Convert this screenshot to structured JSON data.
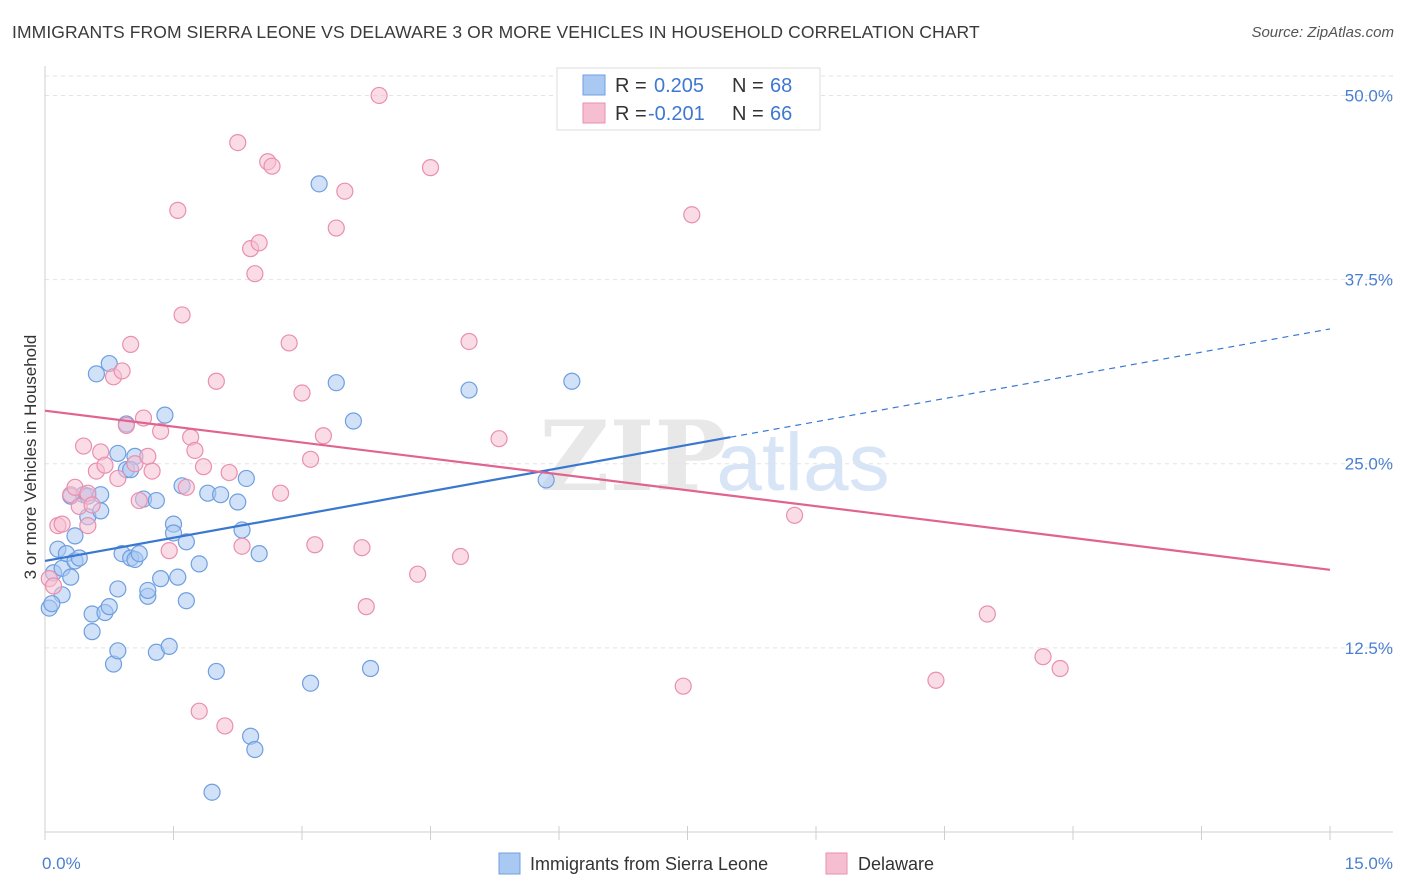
{
  "title": "IMMIGRANTS FROM SIERRA LEONE VS DELAWARE 3 OR MORE VEHICLES IN HOUSEHOLD CORRELATION CHART",
  "source": "Source: ZipAtlas.com",
  "watermark": {
    "zip": "ZIP",
    "atlas": "atlas"
  },
  "colors": {
    "blue_fill": "#a9c8f2",
    "blue_stroke": "#6f9fe0",
    "blue_line": "#3a78d0",
    "pink_fill": "#f6bfd1",
    "pink_stroke": "#ea8fae",
    "pink_line": "#e0648f",
    "tick_text": "#4a7fd0",
    "grid": "#e3e3e3"
  },
  "legend": {
    "rows": [
      {
        "r_label": "R =",
        "r_value": "0.205",
        "n_label": "N =",
        "n_value": "68"
      },
      {
        "r_label": "R =",
        "r_value": "-0.201",
        "n_label": "N =",
        "n_value": "66"
      }
    ]
  },
  "chart_data": {
    "type": "scatter",
    "xlabel": "",
    "ylabel": "3 or more Vehicles in Household",
    "xlim": [
      0,
      15
    ],
    "ylim": [
      0,
      52
    ],
    "x_tick_labels": [
      {
        "value": 0,
        "label": "0.0%"
      },
      {
        "value": 15,
        "label": "15.0%"
      }
    ],
    "y_tick_labels": [
      {
        "value": 12.5,
        "label": "12.5%"
      },
      {
        "value": 25,
        "label": "25.0%"
      },
      {
        "value": 37.5,
        "label": "37.5%"
      },
      {
        "value": 50,
        "label": "50.0%"
      }
    ],
    "grid": "horizontal dashed",
    "legend_position": "top-center",
    "series": [
      {
        "name": "Immigrants from Sierra Leone",
        "color": "blue",
        "trend": {
          "x_solid_end": 8.0,
          "x_dash_end": 15.0,
          "y_at_0": 18.4,
          "slope": 1.05
        },
        "points": [
          [
            0.05,
            15.2
          ],
          [
            0.1,
            17.6
          ],
          [
            0.15,
            19.2
          ],
          [
            0.2,
            16.1
          ],
          [
            0.2,
            17.9
          ],
          [
            0.25,
            18.9
          ],
          [
            0.3,
            22.8
          ],
          [
            0.35,
            18.4
          ],
          [
            0.35,
            20.1
          ],
          [
            0.4,
            18.6
          ],
          [
            0.45,
            22.9
          ],
          [
            0.5,
            21.4
          ],
          [
            0.55,
            13.6
          ],
          [
            0.55,
            14.8
          ],
          [
            0.6,
            31.1
          ],
          [
            0.65,
            21.8
          ],
          [
            0.7,
            14.9
          ],
          [
            0.75,
            31.8
          ],
          [
            0.75,
            15.3
          ],
          [
            0.8,
            11.4
          ],
          [
            0.85,
            25.7
          ],
          [
            0.85,
            12.3
          ],
          [
            0.9,
            18.9
          ],
          [
            0.95,
            27.7
          ],
          [
            0.95,
            24.6
          ],
          [
            1.0,
            18.6
          ],
          [
            1.05,
            18.5
          ],
          [
            1.05,
            25.5
          ],
          [
            1.1,
            18.9
          ],
          [
            1.15,
            22.6
          ],
          [
            1.2,
            16.0
          ],
          [
            1.2,
            16.4
          ],
          [
            1.3,
            12.2
          ],
          [
            1.35,
            17.2
          ],
          [
            1.4,
            28.3
          ],
          [
            1.45,
            12.6
          ],
          [
            1.5,
            20.9
          ],
          [
            1.5,
            20.3
          ],
          [
            1.55,
            17.3
          ],
          [
            1.6,
            23.5
          ],
          [
            1.65,
            15.7
          ],
          [
            1.65,
            19.7
          ],
          [
            1.8,
            18.2
          ],
          [
            1.9,
            23.0
          ],
          [
            1.95,
            2.7
          ],
          [
            2.0,
            10.9
          ],
          [
            2.05,
            22.9
          ],
          [
            2.25,
            22.4
          ],
          [
            2.3,
            20.5
          ],
          [
            2.35,
            24.0
          ],
          [
            2.4,
            6.5
          ],
          [
            2.45,
            5.6
          ],
          [
            2.5,
            18.9
          ],
          [
            3.1,
            10.1
          ],
          [
            3.2,
            44.0
          ],
          [
            3.4,
            30.5
          ],
          [
            3.6,
            27.9
          ],
          [
            3.8,
            11.1
          ],
          [
            4.95,
            30.0
          ],
          [
            5.85,
            23.9
          ],
          [
            6.15,
            30.6
          ],
          [
            0.08,
            15.5
          ],
          [
            0.5,
            22.8
          ],
          [
            0.85,
            16.5
          ],
          [
            1.0,
            24.6
          ],
          [
            1.3,
            22.5
          ],
          [
            0.3,
            17.3
          ],
          [
            0.65,
            22.9
          ]
        ]
      },
      {
        "name": "Delaware",
        "color": "pink",
        "trend": {
          "x_start": 0,
          "x_end": 15.0,
          "y_at_0": 28.6,
          "slope": -0.72
        },
        "points": [
          [
            0.05,
            17.2
          ],
          [
            0.1,
            16.7
          ],
          [
            0.15,
            20.8
          ],
          [
            0.2,
            20.9
          ],
          [
            0.3,
            22.9
          ],
          [
            0.35,
            23.4
          ],
          [
            0.4,
            22.1
          ],
          [
            0.45,
            26.2
          ],
          [
            0.5,
            23.0
          ],
          [
            0.55,
            22.2
          ],
          [
            0.6,
            24.5
          ],
          [
            0.65,
            25.8
          ],
          [
            0.7,
            24.9
          ],
          [
            0.8,
            30.9
          ],
          [
            0.85,
            24.0
          ],
          [
            0.9,
            31.3
          ],
          [
            0.95,
            27.6
          ],
          [
            1.0,
            33.1
          ],
          [
            1.05,
            25.0
          ],
          [
            1.1,
            22.5
          ],
          [
            1.15,
            28.1
          ],
          [
            1.2,
            25.5
          ],
          [
            1.25,
            24.5
          ],
          [
            1.35,
            27.2
          ],
          [
            1.45,
            19.1
          ],
          [
            1.55,
            42.2
          ],
          [
            1.6,
            35.1
          ],
          [
            1.65,
            23.4
          ],
          [
            1.7,
            26.8
          ],
          [
            1.75,
            25.9
          ],
          [
            1.8,
            8.2
          ],
          [
            1.85,
            24.8
          ],
          [
            2.0,
            30.6
          ],
          [
            2.1,
            7.2
          ],
          [
            2.15,
            24.4
          ],
          [
            2.25,
            46.8
          ],
          [
            2.3,
            19.4
          ],
          [
            2.4,
            39.6
          ],
          [
            2.45,
            37.9
          ],
          [
            2.5,
            40.0
          ],
          [
            2.6,
            45.5
          ],
          [
            2.65,
            45.2
          ],
          [
            2.75,
            23.0
          ],
          [
            2.85,
            33.2
          ],
          [
            3.0,
            29.8
          ],
          [
            3.1,
            25.3
          ],
          [
            3.15,
            19.5
          ],
          [
            3.25,
            26.9
          ],
          [
            3.4,
            41.0
          ],
          [
            3.5,
            43.5
          ],
          [
            3.7,
            19.3
          ],
          [
            3.75,
            15.3
          ],
          [
            3.9,
            50.0
          ],
          [
            4.35,
            17.5
          ],
          [
            4.5,
            45.1
          ],
          [
            4.85,
            18.7
          ],
          [
            4.95,
            33.3
          ],
          [
            5.3,
            26.7
          ],
          [
            7.45,
            9.9
          ],
          [
            7.55,
            41.9
          ],
          [
            8.75,
            21.5
          ],
          [
            10.4,
            10.3
          ],
          [
            11.0,
            14.8
          ],
          [
            11.65,
            11.9
          ],
          [
            11.85,
            11.1
          ],
          [
            0.5,
            20.8
          ]
        ]
      }
    ]
  }
}
